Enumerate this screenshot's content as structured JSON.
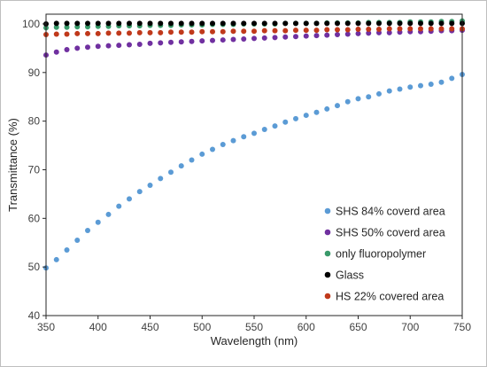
{
  "chart_data": {
    "type": "scatter",
    "xlabel": "Wavelength (nm)",
    "ylabel": "Transmittance (%)",
    "xlim": [
      350,
      750
    ],
    "ylim": [
      40,
      102
    ],
    "x_ticks": [
      350,
      400,
      450,
      500,
      550,
      600,
      650,
      700,
      750
    ],
    "y_ticks": [
      40,
      50,
      60,
      70,
      80,
      90,
      100
    ],
    "grid": false,
    "legend_position": "bottom-right",
    "series": [
      {
        "name": "SHS 84% coverd area",
        "color": "#5b9bd5",
        "x": [
          350,
          360,
          370,
          380,
          390,
          400,
          410,
          420,
          430,
          440,
          450,
          460,
          470,
          480,
          490,
          500,
          510,
          520,
          530,
          540,
          550,
          560,
          570,
          580,
          590,
          600,
          610,
          620,
          630,
          640,
          650,
          660,
          670,
          680,
          690,
          700,
          710,
          720,
          730,
          740,
          750
        ],
        "y": [
          49.8,
          51.5,
          53.5,
          55.5,
          57.5,
          59.2,
          60.8,
          62.5,
          64,
          65.5,
          66.8,
          68.2,
          69.5,
          70.8,
          72,
          73.2,
          74.2,
          75.2,
          76,
          76.8,
          77.5,
          78.3,
          79,
          79.8,
          80.5,
          81.2,
          81.8,
          82.5,
          83.2,
          84,
          84.6,
          85,
          85.6,
          86.2,
          86.6,
          87,
          87.3,
          87.6,
          88,
          88.8,
          89.6
        ]
      },
      {
        "name": "SHS 50% coverd area",
        "color": "#7030a0",
        "x": [
          350,
          360,
          370,
          380,
          390,
          400,
          410,
          420,
          430,
          440,
          450,
          460,
          470,
          480,
          490,
          500,
          510,
          520,
          530,
          540,
          550,
          560,
          570,
          580,
          590,
          600,
          610,
          620,
          630,
          640,
          650,
          660,
          670,
          680,
          690,
          700,
          710,
          720,
          730,
          740,
          750
        ],
        "y": [
          93.6,
          94.2,
          94.7,
          95,
          95.2,
          95.4,
          95.5,
          95.6,
          95.7,
          95.8,
          96,
          96.1,
          96.2,
          96.3,
          96.4,
          96.5,
          96.6,
          96.7,
          96.8,
          96.9,
          97,
          97.1,
          97.2,
          97.3,
          97.4,
          97.5,
          97.6,
          97.7,
          97.8,
          97.9,
          98,
          98.1,
          98.2,
          98.2,
          98.3,
          98.4,
          98.4,
          98.5,
          98.6,
          98.6,
          98.7
        ]
      },
      {
        "name": "only fluoropolymer",
        "color": "#3a9a6a",
        "x": [
          350,
          360,
          370,
          380,
          390,
          400,
          410,
          420,
          430,
          440,
          450,
          460,
          470,
          480,
          490,
          500,
          510,
          520,
          530,
          540,
          550,
          560,
          570,
          580,
          590,
          600,
          610,
          620,
          630,
          640,
          650,
          660,
          670,
          680,
          690,
          700,
          710,
          720,
          730,
          740,
          750
        ],
        "y": [
          99.2,
          99.3,
          99.3,
          99.4,
          99.4,
          99.5,
          99.5,
          99.6,
          99.6,
          99.6,
          99.7,
          99.7,
          99.7,
          99.8,
          99.8,
          99.8,
          99.9,
          99.9,
          99.9,
          100,
          100,
          100,
          100,
          100.1,
          100.1,
          100.1,
          100.1,
          100.2,
          100.2,
          100.2,
          100.2,
          100.3,
          100.3,
          100.3,
          100.3,
          100.4,
          100.4,
          100.4,
          100.5,
          100.5,
          100.6
        ]
      },
      {
        "name": "Glass",
        "color": "#000000",
        "x": [
          350,
          360,
          370,
          380,
          390,
          400,
          410,
          420,
          430,
          440,
          450,
          460,
          470,
          480,
          490,
          500,
          510,
          520,
          530,
          540,
          550,
          560,
          570,
          580,
          590,
          600,
          610,
          620,
          630,
          640,
          650,
          660,
          670,
          680,
          690,
          700,
          710,
          720,
          730,
          740,
          750
        ],
        "y": [
          100,
          100.1,
          100.1,
          100.1,
          100.1,
          100.1,
          100.1,
          100.1,
          100.1,
          100.1,
          100.1,
          100.1,
          100.1,
          100.1,
          100.1,
          100.1,
          100.1,
          100.1,
          100.1,
          100.1,
          100.1,
          100.1,
          100.1,
          100.1,
          100.1,
          100.1,
          100.1,
          100.1,
          100.1,
          100.1,
          100.1,
          100.1,
          100.1,
          100.1,
          100.1,
          100.1,
          100.1,
          100.1,
          100.1,
          100.1,
          100.1
        ]
      },
      {
        "name": "HS 22% covered area",
        "color": "#c0391b",
        "x": [
          350,
          360,
          370,
          380,
          390,
          400,
          410,
          420,
          430,
          440,
          450,
          460,
          470,
          480,
          490,
          500,
          510,
          520,
          530,
          540,
          550,
          560,
          570,
          580,
          590,
          600,
          610,
          620,
          630,
          640,
          650,
          660,
          670,
          680,
          690,
          700,
          710,
          720,
          730,
          740,
          750
        ],
        "y": [
          97.8,
          97.9,
          97.9,
          98,
          98,
          98,
          98.1,
          98.1,
          98.1,
          98.2,
          98.2,
          98.2,
          98.3,
          98.3,
          98.3,
          98.4,
          98.4,
          98.4,
          98.5,
          98.5,
          98.5,
          98.6,
          98.6,
          98.6,
          98.7,
          98.7,
          98.7,
          98.8,
          98.8,
          98.8,
          98.9,
          98.9,
          98.9,
          99,
          99,
          99,
          99,
          99,
          99,
          99,
          99
        ]
      }
    ]
  }
}
